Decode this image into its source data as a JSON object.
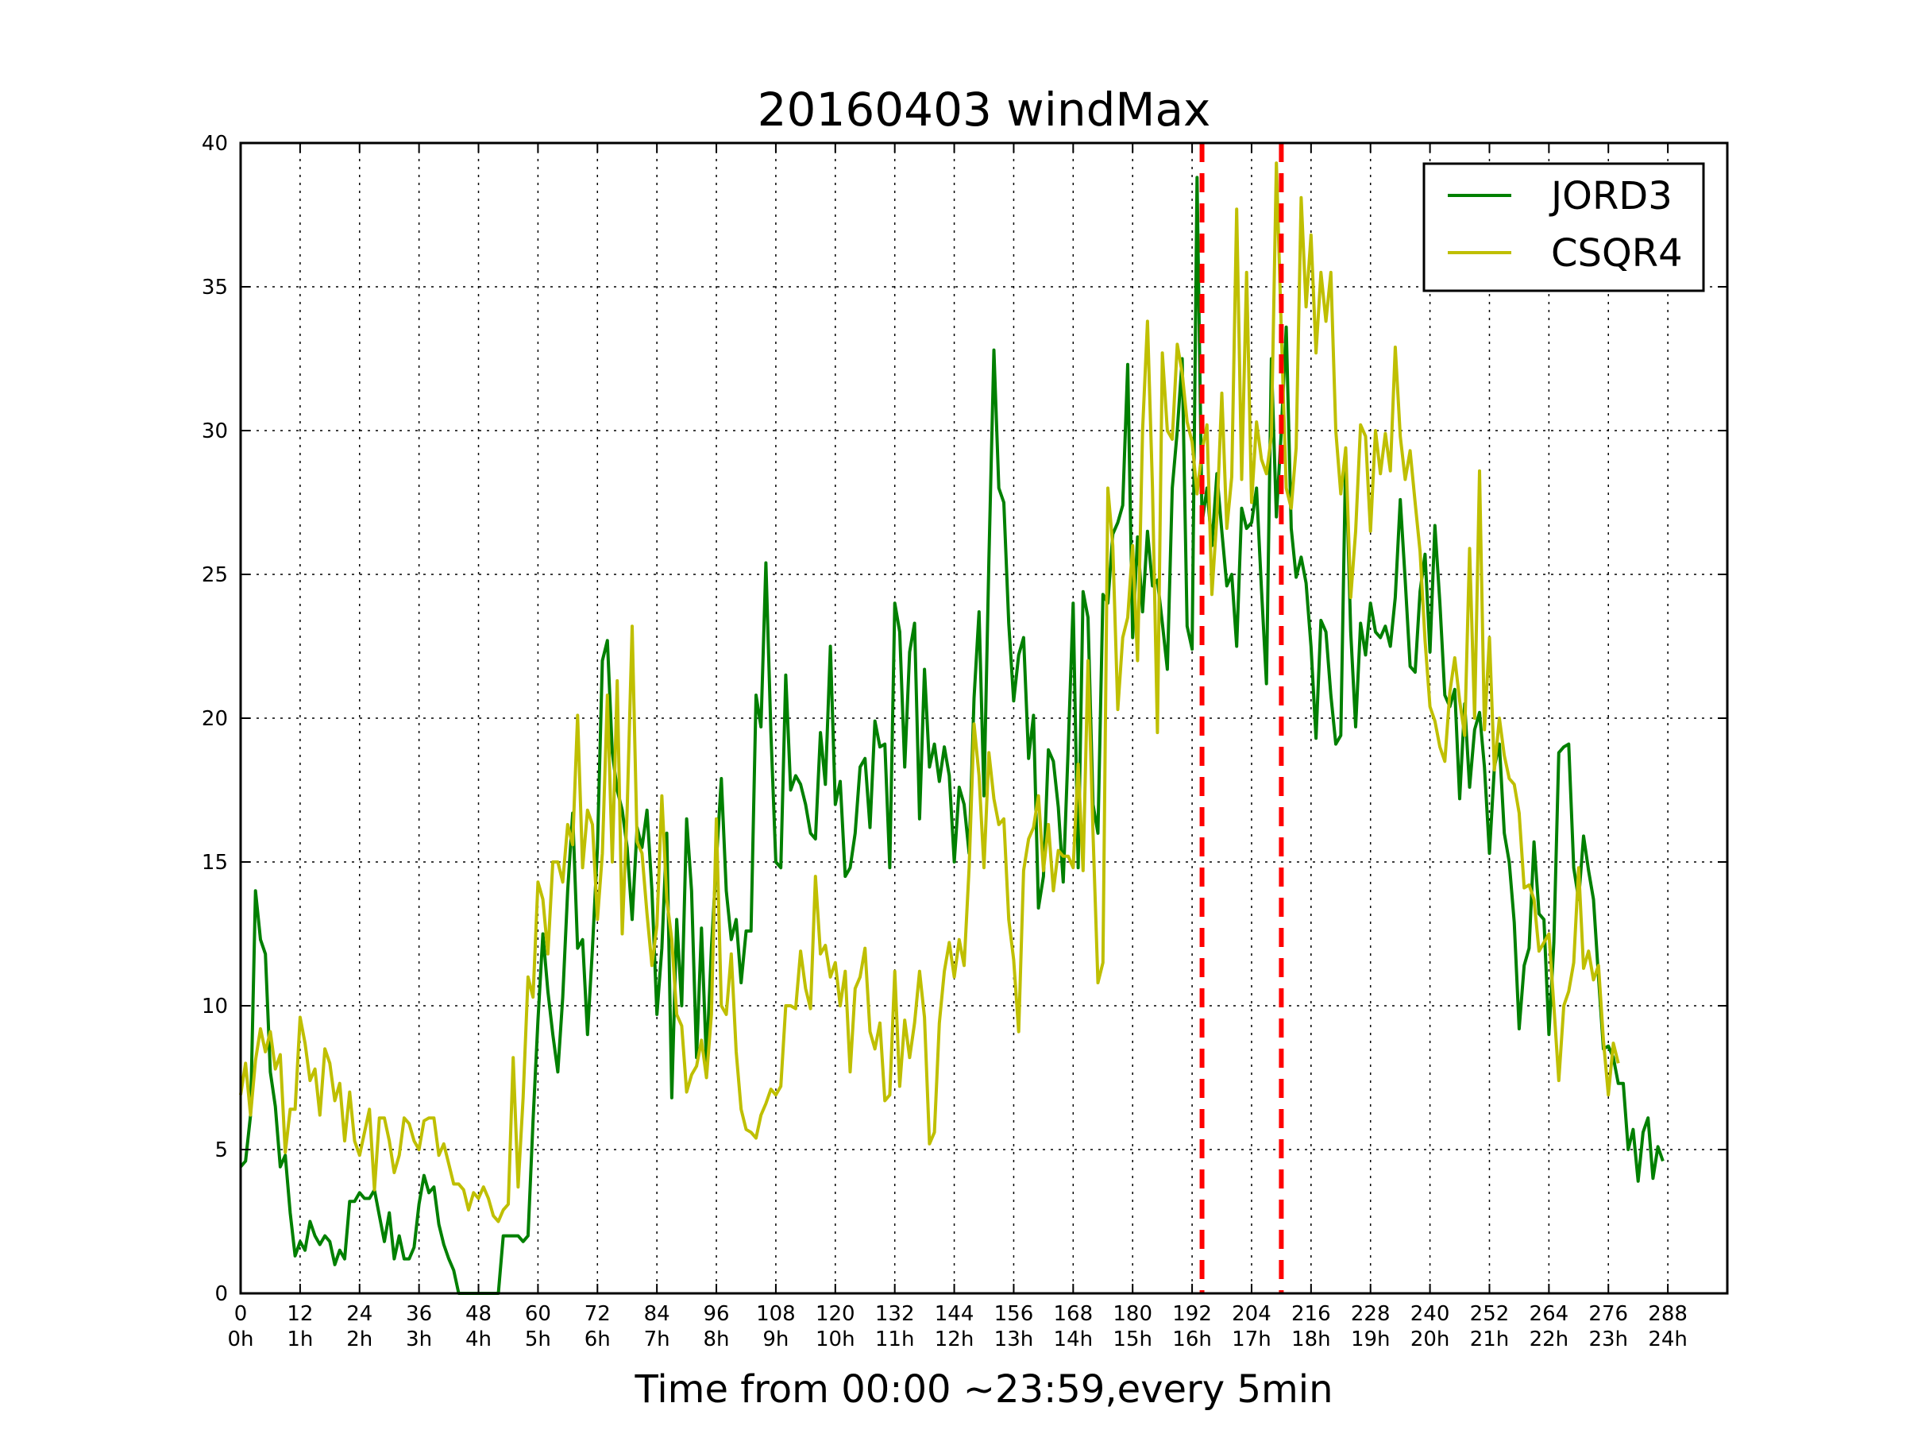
{
  "chart_data": {
    "type": "line",
    "title": "20160403 windMax",
    "xlabel": "Time from 00:00 ~23:59,every 5min",
    "ylabel": "",
    "xlim": [
      0,
      300
    ],
    "ylim": [
      0,
      40
    ],
    "grid": true,
    "legend_position": "top-right",
    "x_ticks": [
      0,
      12,
      24,
      36,
      48,
      60,
      72,
      84,
      96,
      108,
      120,
      132,
      144,
      156,
      168,
      180,
      192,
      204,
      216,
      228,
      240,
      252,
      264,
      276,
      288
    ],
    "x_tick_labels_top": [
      "0",
      "12",
      "24",
      "36",
      "48",
      "60",
      "72",
      "84",
      "96",
      "108",
      "120",
      "132",
      "144",
      "156",
      "168",
      "180",
      "192",
      "204",
      "216",
      "228",
      "240",
      "252",
      "264",
      "276",
      "288"
    ],
    "x_tick_labels_bottom": [
      "0h",
      "1h",
      "2h",
      "3h",
      "4h",
      "5h",
      "6h",
      "7h",
      "8h",
      "9h",
      "10h",
      "11h",
      "12h",
      "13h",
      "14h",
      "15h",
      "16h",
      "17h",
      "18h",
      "19h",
      "20h",
      "21h",
      "22h",
      "23h",
      "24h"
    ],
    "y_ticks": [
      0,
      5,
      10,
      15,
      20,
      25,
      30,
      35,
      40
    ],
    "y_tick_labels": [
      "0",
      "5",
      "10",
      "15",
      "20",
      "25",
      "30",
      "35",
      "40"
    ],
    "vlines": [
      {
        "x": 194,
        "color": "#ff0000",
        "style": "dashed"
      },
      {
        "x": 210,
        "color": "#ff0000",
        "style": "dashed"
      }
    ],
    "series": [
      {
        "name": "JORD3",
        "color": "#008000",
        "x_start": 0,
        "x_step": 1,
        "values": [
          4.4,
          4.6,
          6.2,
          14.0,
          12.3,
          11.8,
          7.7,
          6.5,
          4.4,
          4.8,
          2.8,
          1.3,
          1.8,
          1.5,
          2.5,
          2.0,
          1.7,
          2.0,
          1.8,
          1.0,
          1.5,
          1.2,
          3.2,
          3.2,
          3.5,
          3.3,
          3.3,
          3.6,
          2.7,
          1.8,
          2.8,
          1.2,
          2.0,
          1.2,
          1.2,
          1.6,
          3.1,
          4.1,
          3.5,
          3.7,
          2.4,
          1.7,
          1.2,
          0.8,
          0,
          0,
          0,
          0,
          0,
          0,
          0,
          0,
          0,
          2.0,
          2.0,
          2.0,
          2.0,
          1.8,
          2.0,
          6.0,
          9.5,
          12.5,
          10.5,
          9.0,
          7.7,
          10.3,
          14.0,
          16.7,
          12.0,
          12.3,
          9.0,
          12.0,
          15.5,
          22.0,
          22.7,
          18.8,
          17.5,
          16.8,
          15.5,
          13.0,
          16.2,
          15.5,
          16.8,
          14.0,
          9.7,
          12.0,
          16.0,
          6.8,
          13.0,
          10.0,
          16.5,
          14.0,
          8.2,
          12.7,
          8.0,
          12.0,
          15.0,
          17.9,
          14.0,
          12.3,
          13.0,
          10.8,
          12.6,
          12.6,
          20.8,
          19.7,
          25.4,
          19.5,
          15.0,
          14.8,
          21.5,
          17.5,
          18.0,
          17.7,
          17.0,
          16.0,
          15.8,
          19.5,
          17.7,
          22.5,
          17.0,
          17.8,
          14.5,
          14.8,
          16.0,
          18.3,
          18.6,
          16.2,
          19.9,
          19.0,
          19.1,
          14.8,
          24.0,
          23.0,
          18.3,
          22.3,
          23.3,
          16.5,
          21.7,
          18.3,
          19.1,
          17.8,
          19.0,
          18.0,
          15.0,
          17.6,
          17.0,
          15.3,
          20.7,
          23.7,
          17.3,
          25.5,
          32.8,
          28.0,
          27.5,
          23.3,
          20.6,
          22.2,
          22.8,
          18.6,
          20.1,
          13.4,
          14.5,
          18.9,
          18.5,
          16.9,
          14.3,
          19.0,
          24.0,
          14.8,
          24.4,
          23.5,
          17.0,
          16.0,
          24.3,
          24.0,
          26.4,
          26.8,
          27.4,
          32.3,
          22.8,
          26.3,
          23.7,
          26.5,
          24.6,
          24.8,
          23.3,
          21.7,
          28.0,
          30.0,
          32.5,
          23.2,
          22.4,
          38.8,
          26.8,
          28.0,
          26.0,
          28.5,
          26.5,
          24.6,
          25.0,
          22.5,
          27.3,
          26.6,
          26.8,
          28.0,
          24.5,
          21.2,
          32.5,
          27.0,
          30.0,
          33.6,
          26.6,
          24.9,
          25.6,
          24.7,
          22.5,
          19.3,
          23.4,
          23.0,
          20.8,
          19.1,
          19.4,
          29.2,
          23.0,
          19.7,
          23.3,
          22.2,
          24.0,
          23.0,
          22.8,
          23.2,
          22.5,
          24.2,
          27.6,
          24.8,
          21.8,
          21.6,
          24.4,
          25.7,
          22.3,
          26.7,
          24.0,
          20.8,
          20.4,
          21.0,
          17.2,
          20.5,
          17.6,
          19.6,
          20.2,
          18.3,
          15.3,
          18.3,
          19.1,
          16.0,
          15.0,
          12.9,
          9.2,
          11.4,
          12.0,
          15.7,
          13.2,
          13.0,
          9.0,
          12.2,
          18.8,
          19.0,
          19.1,
          14.8,
          13.7,
          15.9,
          14.7,
          13.7,
          11.0,
          8.5,
          8.6,
          8.2,
          7.3,
          7.3,
          5.0,
          5.7,
          3.9,
          5.6,
          6.1,
          4.0,
          5.1,
          4.6
        ]
      },
      {
        "name": "CSQR4",
        "color": "#bfbf00",
        "x_start": 0,
        "x_step": 1,
        "values": [
          6.9,
          8.0,
          6.2,
          8.1,
          9.2,
          8.4,
          9.1,
          7.8,
          8.3,
          4.9,
          6.4,
          6.4,
          9.6,
          8.7,
          7.4,
          7.8,
          6.2,
          8.5,
          8.0,
          6.7,
          7.3,
          5.3,
          7.0,
          5.3,
          4.8,
          5.6,
          6.4,
          3.6,
          6.1,
          6.1,
          5.3,
          4.2,
          4.8,
          6.1,
          5.9,
          5.3,
          5.0,
          6.0,
          6.1,
          6.1,
          4.8,
          5.2,
          4.5,
          3.8,
          3.8,
          3.6,
          2.9,
          3.5,
          3.3,
          3.7,
          3.3,
          2.7,
          2.5,
          2.9,
          3.1,
          8.2,
          3.7,
          6.8,
          11.0,
          10.3,
          14.3,
          13.7,
          11.8,
          15.0,
          15.0,
          14.3,
          16.3,
          15.6,
          20.1,
          14.8,
          16.8,
          16.3,
          13.0,
          15.3,
          20.8,
          15.0,
          21.3,
          12.5,
          16.8,
          23.2,
          15.7,
          15.3,
          13.2,
          11.4,
          12.8,
          17.3,
          13.7,
          12.3,
          9.7,
          9.3,
          7.0,
          7.6,
          7.9,
          8.8,
          7.5,
          9.7,
          16.5,
          10.0,
          9.7,
          11.8,
          8.4,
          6.4,
          5.7,
          5.6,
          5.4,
          6.2,
          6.6,
          7.1,
          6.9,
          7.2,
          10.0,
          10.0,
          9.9,
          11.9,
          10.6,
          9.9,
          14.5,
          11.8,
          12.1,
          11.0,
          11.5,
          10.0,
          11.2,
          7.7,
          10.6,
          11.0,
          12.0,
          9.1,
          8.5,
          9.4,
          6.7,
          6.9,
          11.2,
          7.2,
          9.5,
          8.2,
          9.4,
          11.2,
          9.6,
          5.2,
          5.6,
          9.4,
          11.2,
          12.2,
          11.0,
          12.3,
          11.4,
          14.8,
          19.8,
          18.0,
          14.8,
          18.8,
          17.2,
          16.3,
          16.5,
          13.0,
          11.6,
          9.1,
          14.7,
          15.8,
          16.2,
          17.3,
          14.7,
          16.3,
          14.0,
          15.4,
          15.2,
          15.2,
          14.8,
          18.4,
          14.7,
          22.0,
          16.0,
          10.8,
          11.5,
          28.0,
          26.0,
          20.3,
          22.8,
          23.5,
          26.0,
          22.0,
          30.0,
          33.8,
          28.0,
          19.5,
          32.7,
          30.0,
          29.7,
          33.0,
          32.0,
          30.3,
          29.6,
          27.8,
          29.3,
          30.2,
          24.3,
          27.0,
          31.3,
          26.6,
          28.4,
          37.7,
          28.3,
          35.5,
          27.5,
          30.3,
          29.0,
          28.5,
          29.8,
          39.3,
          33.5,
          28.0,
          27.3,
          29.4,
          38.1,
          34.3,
          36.8,
          32.7,
          35.5,
          33.8,
          35.5,
          30.0,
          27.8,
          29.4,
          24.2,
          26.5,
          30.2,
          29.8,
          26.5,
          30.0,
          28.5,
          29.9,
          28.6,
          32.9,
          29.8,
          28.3,
          29.3,
          27.5,
          25.8,
          22.7,
          20.4,
          19.9,
          19.0,
          18.5,
          20.9,
          22.1,
          20.6,
          19.4,
          25.9,
          20.0,
          28.6,
          19.6,
          22.8,
          18.2,
          20.0,
          18.7,
          17.9,
          17.7,
          16.7,
          14.1,
          14.2,
          13.7,
          11.9,
          12.2,
          12.5,
          10.0,
          7.4,
          10.0,
          10.5,
          11.5,
          14.8,
          11.3,
          11.9,
          10.9,
          11.4,
          8.8,
          6.9,
          8.7,
          8.0
        ]
      }
    ]
  }
}
